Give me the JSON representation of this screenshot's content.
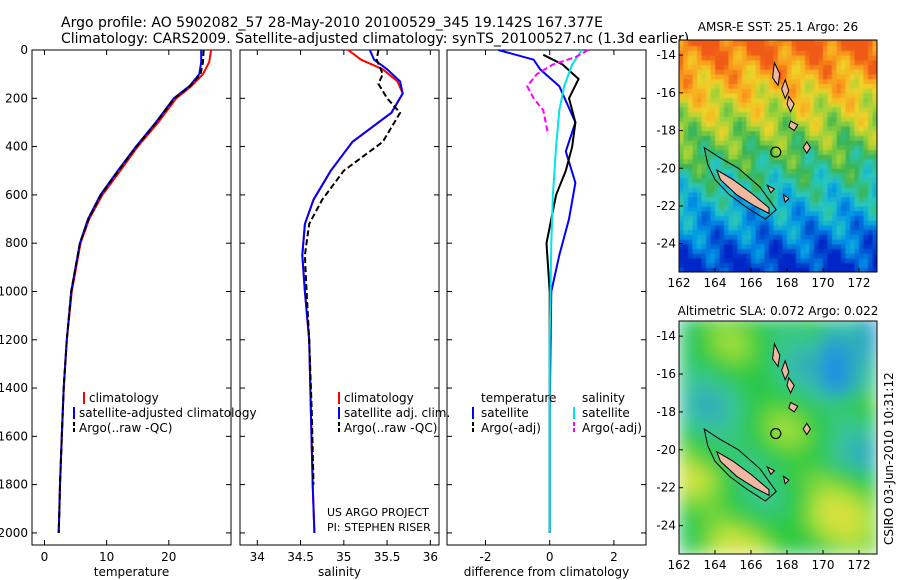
{
  "header": {
    "line1": "Argo profile: AO 5902082_57 28-May-2010 20100529_345 19.142S 167.377E",
    "line2": "Climatology: CARS2009. Satellite-adjusted climatology: synTS_20100527.nc (1.3d earlier)"
  },
  "side_stamp": "CSIRO 03-Jun-2010 10:31:12",
  "colors": {
    "climatology": "#ff0000",
    "satellite": "#0000ff",
    "argo": "#000000",
    "satellite_salinity": "#00e5e5",
    "argo_salinity": "#ff00ff"
  },
  "chart_data": [
    {
      "id": "temperature",
      "type": "line",
      "xlabel": "temperature",
      "ylabel": "",
      "xlim": [
        -2,
        30
      ],
      "ylim": [
        2050,
        0
      ],
      "xticks": [
        0,
        10,
        20
      ],
      "yticks": [
        0,
        200,
        400,
        600,
        800,
        1000,
        1200,
        1400,
        1600,
        1800,
        2000
      ],
      "legend": [
        "climatology",
        "satellite-adjusted climatology",
        "Argo(..raw -QC)"
      ],
      "series": [
        {
          "name": "climatology",
          "color": "#ff0000",
          "x": [
            26.8,
            26.5,
            25.5,
            23.6,
            21.2,
            18.3,
            15.0,
            12.2,
            9.3,
            7.2,
            5.8,
            4.4,
            3.6,
            3.1,
            2.8,
            2.5,
            2.4,
            2.3
          ],
          "y": [
            0,
            50,
            100,
            150,
            200,
            300,
            400,
            500,
            600,
            700,
            800,
            1000,
            1200,
            1400,
            1600,
            1800,
            1900,
            2000
          ]
        },
        {
          "name": "satellite-adjusted climatology",
          "color": "#0000ff",
          "x": [
            25.2,
            25.2,
            24.9,
            23.3,
            20.8,
            17.9,
            14.7,
            11.8,
            9.0,
            7.0,
            5.7,
            4.3,
            3.6,
            3.1,
            2.8,
            2.5,
            2.4,
            2.3
          ],
          "y": [
            0,
            50,
            100,
            150,
            200,
            300,
            400,
            500,
            600,
            700,
            800,
            1000,
            1200,
            1400,
            1600,
            1800,
            1900,
            2000
          ]
        },
        {
          "name": "Argo(..raw -QC)",
          "color": "#000000",
          "x": [
            25.6,
            25.5,
            25.1,
            23.4,
            20.9,
            18.0,
            14.8,
            11.9,
            9.1,
            7.1,
            5.7,
            4.3,
            3.6,
            3.1,
            2.8,
            2.5,
            2.4,
            2.3
          ],
          "y": [
            0,
            50,
            100,
            150,
            200,
            300,
            400,
            500,
            600,
            700,
            800,
            1000,
            1200,
            1400,
            1600,
            1800,
            1900,
            2000
          ]
        }
      ]
    },
    {
      "id": "salinity",
      "type": "line",
      "xlabel": "salinity",
      "xlim": [
        33.8,
        36.1
      ],
      "ylim": [
        2050,
        0
      ],
      "xticks": [
        34,
        34.5,
        35,
        35.5,
        36
      ],
      "legend": [
        "climatology",
        "satellite adj. clim.",
        "Argo(..raw -QC)"
      ],
      "annotation": [
        "US ARGO PROJECT",
        "PI: STEPHEN RISER"
      ],
      "series": [
        {
          "name": "climatology",
          "color": "#ff0000",
          "x": [
            35.05,
            35.2,
            35.45,
            35.62,
            35.68,
            35.55,
            35.1,
            34.85,
            34.65,
            34.55,
            34.52,
            34.55,
            34.6,
            34.62,
            34.64,
            34.66
          ],
          "y": [
            0,
            40,
            80,
            130,
            180,
            260,
            380,
            500,
            620,
            720,
            850,
            1000,
            1200,
            1500,
            1800,
            2000
          ]
        },
        {
          "name": "satellite adj. clim.",
          "color": "#0000ff",
          "x": [
            35.3,
            35.35,
            35.5,
            35.65,
            35.68,
            35.55,
            35.1,
            34.85,
            34.65,
            34.55,
            34.52,
            34.55,
            34.6,
            34.62,
            34.64,
            34.66
          ],
          "y": [
            0,
            40,
            80,
            130,
            180,
            260,
            380,
            500,
            620,
            720,
            850,
            1000,
            1200,
            1500,
            1800,
            2000
          ]
        },
        {
          "name": "Argo(..raw -QC)",
          "color": "#000000",
          "x": [
            35.4,
            35.38,
            35.45,
            35.4,
            35.5,
            35.65,
            35.45,
            35.0,
            34.75,
            34.6,
            34.55,
            34.57,
            34.6,
            34.63,
            34.65
          ],
          "y": [
            0,
            40,
            100,
            140,
            200,
            260,
            380,
            500,
            620,
            720,
            850,
            1000,
            1200,
            1500,
            1800
          ]
        }
      ]
    },
    {
      "id": "difference",
      "type": "line",
      "xlabel": "difference from climatology",
      "xlim": [
        -3.2,
        3.0
      ],
      "ylim": [
        2050,
        0
      ],
      "xticks": [
        -2,
        0,
        2
      ],
      "legend_titles": [
        "temperature",
        "salinity"
      ],
      "legend": [
        "satellite",
        "Argo(-adj)",
        "satellite",
        "Argo(-adj)"
      ],
      "series": [
        {
          "name": "temperature satellite",
          "color": "#0000ff",
          "x": [
            -1.6,
            -0.5,
            -0.3,
            0.3,
            0.8,
            0.5,
            0.8,
            0.6,
            0.3,
            0.05,
            0.0,
            0.0
          ],
          "y": [
            0,
            40,
            80,
            150,
            300,
            420,
            550,
            700,
            850,
            1000,
            1500,
            2000
          ]
        },
        {
          "name": "temperature Argo(-adj)",
          "color": "#000000",
          "x": [
            -0.2,
            0.4,
            0.9,
            0.6,
            0.8,
            0.7,
            0.5,
            0.2,
            -0.1,
            0.0,
            0.0,
            0.0
          ],
          "y": [
            20,
            60,
            120,
            200,
            300,
            400,
            500,
            600,
            800,
            1000,
            1500,
            2000
          ]
        },
        {
          "name": "salinity satellite",
          "color": "#00e5e5",
          "x": [
            1.0,
            0.7,
            0.45,
            0.3,
            0.2,
            0.1,
            0.05,
            0.0,
            0.0
          ],
          "y": [
            0,
            60,
            150,
            250,
            400,
            600,
            800,
            1200,
            2000
          ]
        },
        {
          "name": "salinity Argo(-adj)",
          "color": "#ff00ff",
          "x": [
            1.2,
            0.8,
            0.1,
            -0.4,
            -0.7,
            -0.5,
            -0.2,
            -0.05
          ],
          "y": [
            0,
            30,
            60,
            100,
            150,
            200,
            250,
            350
          ]
        }
      ]
    },
    {
      "id": "sst_map",
      "type": "heatmap",
      "title": "AMSR-E SST: 25.1 Argo: 26",
      "xlim": [
        162,
        173
      ],
      "ylim": [
        -25.5,
        -13.2
      ],
      "xticks": [
        162,
        164,
        166,
        168,
        170,
        172
      ],
      "yticks": [
        -14,
        -16,
        -18,
        -20,
        -22,
        -24
      ],
      "argo_position": [
        167.377,
        -19.142
      ],
      "value": 25.1,
      "argo_value": 26
    },
    {
      "id": "sla_map",
      "type": "heatmap",
      "title": "Altimetric SLA: 0.072 Argo: 0.022",
      "xlim": [
        162,
        173
      ],
      "ylim": [
        -25.5,
        -13.2
      ],
      "xticks": [
        162,
        164,
        166,
        168,
        170,
        172
      ],
      "yticks": [
        -14,
        -16,
        -18,
        -20,
        -22,
        -24
      ],
      "argo_position": [
        167.377,
        -19.142
      ],
      "value": 0.072,
      "argo_value": 0.022
    }
  ]
}
